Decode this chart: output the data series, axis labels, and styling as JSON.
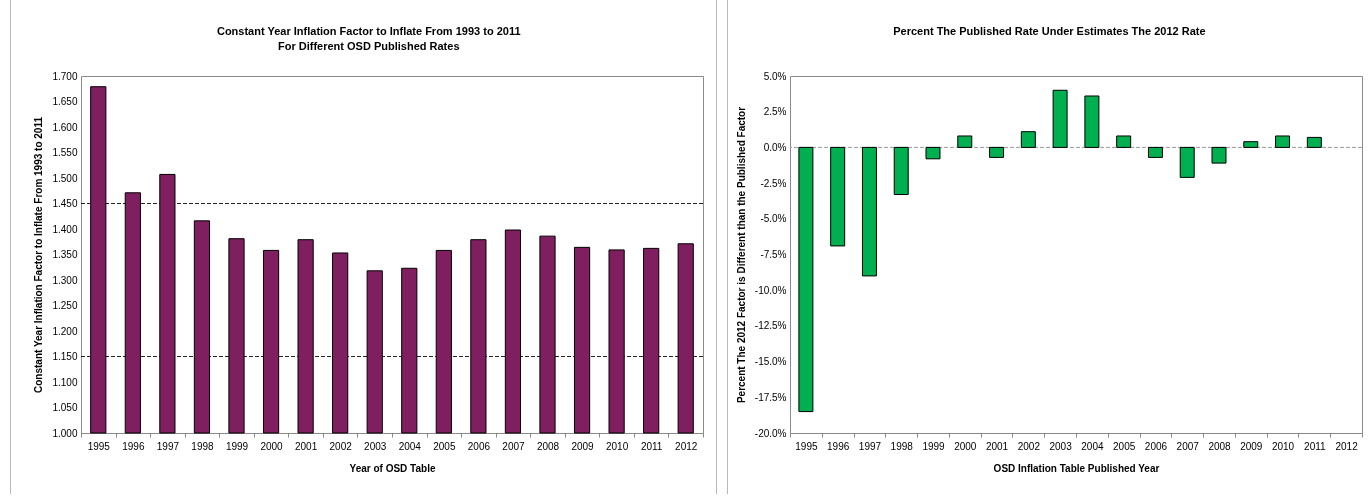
{
  "chart_data": [
    {
      "type": "bar",
      "title": "Constant Year Inflation Factor to Inflate From 1993 to 2011\nFor Different OSD Published Rates",
      "xlabel": "Year of OSD Table",
      "ylabel": "Constant Year Inflation Factor to Inflate From 1993 to 2011",
      "categories": [
        "1995",
        "1996",
        "1997",
        "1998",
        "1999",
        "2000",
        "2001",
        "2002",
        "2003",
        "2004",
        "2005",
        "2006",
        "2007",
        "2008",
        "2009",
        "2010",
        "2011",
        "2012"
      ],
      "values": [
        1.679,
        1.471,
        1.507,
        1.416,
        1.381,
        1.358,
        1.379,
        1.353,
        1.318,
        1.323,
        1.358,
        1.379,
        1.398,
        1.386,
        1.364,
        1.359,
        1.362,
        1.371
      ],
      "color": "#7f1f5f",
      "ylim": [
        1.0,
        1.7
      ],
      "yticks": [
        {
          "value": 1.0,
          "label": "1.000"
        },
        {
          "value": 1.05,
          "label": "1.050"
        },
        {
          "value": 1.1,
          "label": "1.100"
        },
        {
          "value": 1.15,
          "label": "1.150"
        },
        {
          "value": 1.2,
          "label": "1.200"
        },
        {
          "value": 1.25,
          "label": "1.250"
        },
        {
          "value": 1.3,
          "label": "1.300"
        },
        {
          "value": 1.35,
          "label": "1.350"
        },
        {
          "value": 1.4,
          "label": "1.400"
        },
        {
          "value": 1.45,
          "label": "1.450"
        },
        {
          "value": 1.5,
          "label": "1.500"
        },
        {
          "value": 1.55,
          "label": "1.550"
        },
        {
          "value": 1.6,
          "label": "1.600"
        },
        {
          "value": 1.65,
          "label": "1.650"
        },
        {
          "value": 1.7,
          "label": "1.700"
        }
      ],
      "ref_lines": [
        {
          "axis": "y",
          "value": 1.45,
          "color": "#222222",
          "line_style": "dashed"
        },
        {
          "axis": "y",
          "value": 1.15,
          "color": "#222222",
          "line_style": "dashed"
        }
      ]
    },
    {
      "type": "bar",
      "title": "Percent The Published Rate Under Estimates The 2012 Rate",
      "xlabel": "OSD Inflation Table Published Year",
      "ylabel": "Percent The 2012 Factor is Different than the Published Factor",
      "categories": [
        "1995",
        "1996",
        "1997",
        "1998",
        "1999",
        "2000",
        "2001",
        "2002",
        "2003",
        "2004",
        "2005",
        "2006",
        "2007",
        "2008",
        "2009",
        "2010",
        "2011",
        "2012"
      ],
      "values": [
        -18.5,
        -6.9,
        -9.0,
        -3.3,
        -0.8,
        0.8,
        -0.7,
        1.1,
        4.0,
        3.6,
        0.8,
        -0.7,
        -2.1,
        -1.1,
        0.4,
        0.8,
        0.7,
        null
      ],
      "color": "#00b050",
      "ylim": [
        -20,
        5
      ],
      "yticks": [
        {
          "value": -20,
          "label": "-20.0%"
        },
        {
          "value": -17.5,
          "label": "-17.5%"
        },
        {
          "value": -15,
          "label": "-15.0%"
        },
        {
          "value": -12.5,
          "label": "-12.5%"
        },
        {
          "value": -10,
          "label": "-10.0%"
        },
        {
          "value": -7.5,
          "label": "-7.5%"
        },
        {
          "value": -5,
          "label": "-5.0%"
        },
        {
          "value": -2.5,
          "label": "-2.5%"
        },
        {
          "value": 0,
          "label": "0.0%"
        },
        {
          "value": 2.5,
          "label": "2.5%"
        },
        {
          "value": 5,
          "label": "5.0%"
        }
      ],
      "ref_lines": [
        {
          "axis": "y",
          "value": 0,
          "color": "#9a9a9a",
          "line_style": "dashed"
        }
      ]
    }
  ]
}
